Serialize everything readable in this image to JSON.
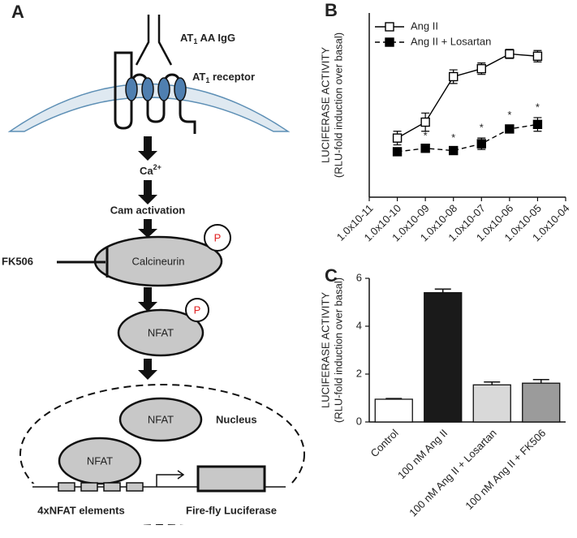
{
  "diagram": {
    "panel": "A",
    "ligand": {
      "main": "AT",
      "sub": "1",
      "rest": " AA IgG"
    },
    "receptor": {
      "main": "AT",
      "sub": "1",
      "rest": " receptor"
    },
    "calcium": {
      "main": "Ca",
      "sup": "2+"
    },
    "cam": "Cam activation",
    "inhibitor": "FK506",
    "calcineurin": "Calcineurin",
    "phospho_1": "P",
    "phospho_2": "P",
    "nfat_cytoplasm": "NFAT",
    "nfat_nucleus": "NFAT",
    "nfat_dna": "NFAT",
    "nucleus": "Nucleus",
    "elements": "4xNFAT elements",
    "reporter": "Fire-fly Luciferase"
  },
  "chart_data": [
    {
      "type": "line",
      "panel": "B",
      "ylabel": [
        "LUCIFERASE ACTIVITY",
        "(RLU-fold induction over basal)"
      ],
      "log_x": true,
      "xlim": [
        1e-11,
        0.0001
      ],
      "xticks": [
        {
          "value": 1e-11,
          "label": "1.0x10-11"
        },
        {
          "value": 1e-10,
          "label": "1.0x10-10"
        },
        {
          "value": 1e-09,
          "label": "1.0x10-09"
        },
        {
          "value": 1e-08,
          "label": "1.0x10-08"
        },
        {
          "value": 1e-07,
          "label": "1.0x10-07"
        },
        {
          "value": 1e-06,
          "label": "1.0x10-06"
        },
        {
          "value": 1e-05,
          "label": "1.0x10-05"
        },
        {
          "value": 0.0001,
          "label": "1.0x10-04"
        }
      ],
      "ylim": [
        -0.6,
        7.5
      ],
      "x": [
        1e-10,
        1e-09,
        1e-08,
        1e-07,
        1e-06,
        1e-05
      ],
      "series": [
        {
          "name": "Ang II",
          "color": "#000000",
          "fill": "#ffffff",
          "dashed": false,
          "values": [
            2.0,
            2.7,
            4.7,
            5.05,
            5.7,
            5.6
          ],
          "errors": [
            0.3,
            0.4,
            0.3,
            0.25,
            0.2,
            0.25
          ]
        },
        {
          "name": "Ang II + Losartan",
          "color": "#000000",
          "fill": "#000000",
          "dashed": true,
          "values": [
            1.4,
            1.55,
            1.45,
            1.75,
            2.4,
            2.6
          ],
          "errors": [
            0.1,
            0.1,
            0.1,
            0.25,
            0.15,
            0.3
          ],
          "significance": [
            null,
            "*",
            "*",
            "*",
            "*",
            "*"
          ]
        }
      ]
    },
    {
      "type": "bar",
      "panel": "C",
      "ylabel": [
        "LUCIFERASE ACTIVITY",
        "(RLU-fold induction over basal)"
      ],
      "categories": [
        "Control",
        "100 nM Ang II",
        "100 nM Ang II + Losartan",
        "100 nM Ang II + FK506"
      ],
      "values": [
        0.95,
        5.4,
        1.55,
        1.62
      ],
      "errors": [
        0.03,
        0.15,
        0.12,
        0.15
      ],
      "colors": [
        "#ffffff",
        "#1a1a1a",
        "#d9d9d9",
        "#9b9b9b"
      ],
      "ylim": [
        0,
        6
      ],
      "yticks": [
        0,
        2,
        4,
        6
      ]
    }
  ]
}
